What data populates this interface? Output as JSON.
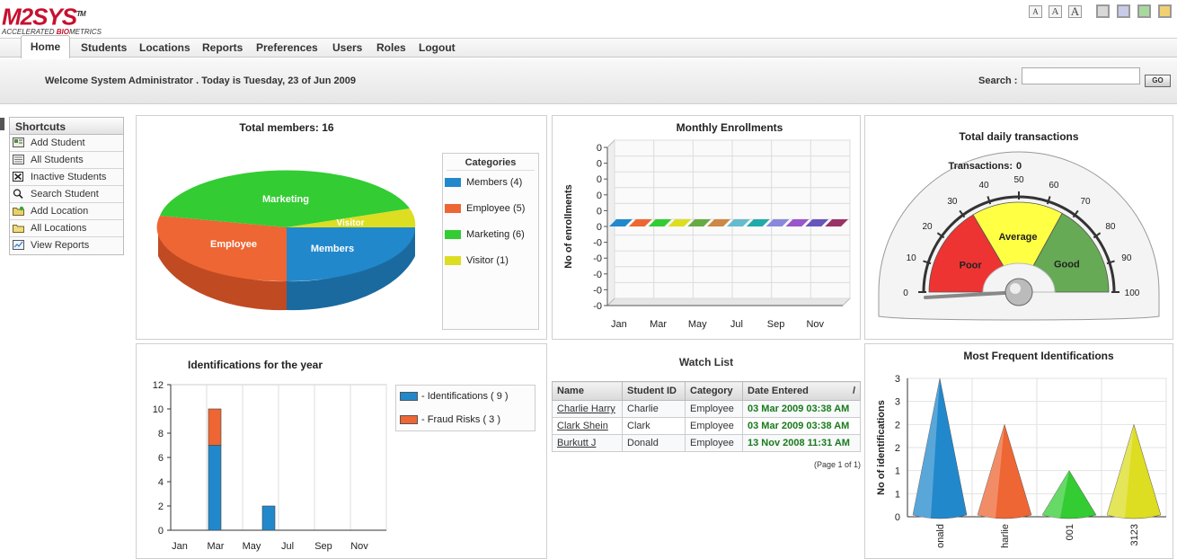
{
  "logo": {
    "name": "M2SYS",
    "tagline_prefix": "ACCELERATED ",
    "tagline_bio": "BIO",
    "tagline_suffix": "METRICS",
    "tm": "TM"
  },
  "font_size_buttons": [
    "A",
    "A",
    "A"
  ],
  "theme_colors": [
    "#d8d8d8",
    "#c8cce8",
    "#a8d8a0",
    "#f0d070"
  ],
  "nav": {
    "items": [
      "Home",
      "Students",
      "Locations",
      "Reports",
      "Preferences",
      "Users",
      "Roles",
      "Logout"
    ],
    "active": "Home"
  },
  "welcome": "Welcome System Administrator . Today is Tuesday, 23 of Jun 2009",
  "search": {
    "label": "Search :",
    "value": "",
    "go_label": "GO"
  },
  "shortcuts": {
    "title": "Shortcuts",
    "items": [
      {
        "label": "Add Student",
        "icon": "add-student-icon"
      },
      {
        "label": "All Students",
        "icon": "all-students-icon"
      },
      {
        "label": "Inactive Students",
        "icon": "inactive-icon"
      },
      {
        "label": "Search Student",
        "icon": "search-icon"
      },
      {
        "label": "Add Location",
        "icon": "add-location-icon"
      },
      {
        "label": "All Locations",
        "icon": "folder-icon"
      },
      {
        "label": "View Reports",
        "icon": "report-icon"
      }
    ]
  },
  "pie_panel": {
    "title": "Total members: 16",
    "legend_title": "Categories",
    "legend": [
      {
        "label": "Members (4)",
        "color": "#2288cc"
      },
      {
        "label": "Employee (5)",
        "color": "#ee6633"
      },
      {
        "label": "Marketing (6)",
        "color": "#33cc33"
      },
      {
        "label": "Visitor (1)",
        "color": "#dddd22"
      }
    ]
  },
  "enroll_panel": {
    "title": "Monthly Enrollments"
  },
  "gauge_panel": {
    "title": "Total daily transactions",
    "readout_label": "Transactions:",
    "readout_value": "0",
    "zones": [
      "Poor",
      "Average",
      "Good"
    ]
  },
  "ident_panel": {
    "title": "Identifications for the year",
    "legend": [
      {
        "label": "- Identifications ( 9 )",
        "color": "#2288cc"
      },
      {
        "label": "- Fraud Risks ( 3 )",
        "color": "#ee6633"
      }
    ]
  },
  "watch_list": {
    "title": "Watch List",
    "columns": [
      "Name",
      "Student ID",
      "Category",
      "Date Entered"
    ],
    "sort_marker": "/",
    "rows": [
      [
        "Charlie Harry",
        "Charlie",
        "Employee",
        "03 Mar 2009 03:38 AM"
      ],
      [
        "Clark Shein",
        "Clark",
        "Employee",
        "03 Mar 2009 03:38 AM"
      ],
      [
        "Burkutt J",
        "Donald",
        "Employee",
        "13 Nov 2008 11:31 AM"
      ]
    ],
    "page_info": "(Page 1 of 1)"
  },
  "freq_panel": {
    "title": "Most Frequent Identifications"
  },
  "chart_data": [
    {
      "type": "pie",
      "title": "Total members: 16",
      "categories": [
        "Members",
        "Employee",
        "Marketing",
        "Visitor"
      ],
      "values": [
        4,
        5,
        6,
        1
      ],
      "colors": [
        "#2288cc",
        "#ee6633",
        "#33cc33",
        "#dddd22"
      ],
      "legend": "right"
    },
    {
      "type": "bar",
      "title": "Monthly Enrollments",
      "ylabel": "No of enrollments",
      "categories": [
        "Jan",
        "Feb",
        "Mar",
        "Apr",
        "May",
        "Jun",
        "Jul",
        "Aug",
        "Sep",
        "Oct",
        "Nov",
        "Dec"
      ],
      "x_tick_labels": [
        "Jan",
        "Mar",
        "May",
        "Jul",
        "Sep",
        "Nov"
      ],
      "values": [
        0,
        0,
        0,
        0,
        0,
        0,
        0,
        0,
        0,
        0,
        0,
        0
      ],
      "colors": [
        "#2288cc",
        "#ee6633",
        "#33cc33",
        "#dddd22",
        "#66aa44",
        "#cc8844",
        "#66bbcc",
        "#22aaaa",
        "#8888dd",
        "#9955cc",
        "#6655bb",
        "#993366"
      ],
      "y_tick_labels": [
        "0",
        "0",
        "0",
        "0",
        "0",
        "0",
        "-0",
        "-0",
        "-0",
        "-0",
        "-0"
      ],
      "grid": true
    },
    {
      "type": "gauge",
      "title": "Total daily transactions",
      "value": 0,
      "range": [
        0,
        100
      ],
      "ticks": [
        0,
        10,
        20,
        30,
        40,
        50,
        60,
        70,
        80,
        90,
        100
      ],
      "zones": [
        {
          "label": "Poor",
          "from": 0,
          "to": 33,
          "color": "#ee3333"
        },
        {
          "label": "Average",
          "from": 33,
          "to": 66,
          "color": "#ffff44"
        },
        {
          "label": "Good",
          "from": 66,
          "to": 100,
          "color": "#66aa55"
        }
      ]
    },
    {
      "type": "bar",
      "title": "Identifications for the year",
      "stacked": true,
      "categories": [
        "Jan",
        "Feb",
        "Mar",
        "Apr",
        "May",
        "Jun",
        "Jul",
        "Aug",
        "Sep",
        "Oct",
        "Nov",
        "Dec"
      ],
      "x_tick_labels": [
        "Jan",
        "Mar",
        "May",
        "Jul",
        "Sep",
        "Nov"
      ],
      "series": [
        {
          "name": "Identifications",
          "values": [
            0,
            0,
            7,
            0,
            0,
            2,
            0,
            0,
            0,
            0,
            0,
            0
          ],
          "color": "#2288cc"
        },
        {
          "name": "Fraud Risks",
          "values": [
            0,
            0,
            3,
            0,
            0,
            0,
            0,
            0,
            0,
            0,
            0,
            0
          ],
          "color": "#ee6633"
        }
      ],
      "ylim": [
        0,
        12
      ],
      "y_ticks": [
        0,
        2,
        4,
        6,
        8,
        10,
        12
      ],
      "legend": "right",
      "grid": true
    },
    {
      "type": "bar",
      "title": "Most Frequent Identifications",
      "ylabel": "No of identifications",
      "categories": [
        "onald",
        "harlie",
        "001",
        "3123"
      ],
      "values": [
        3,
        2,
        1,
        2
      ],
      "colors": [
        "#2288cc",
        "#ee6633",
        "#33cc33",
        "#dddd22"
      ],
      "y_tick_labels": [
        "0",
        "1",
        "1",
        "2",
        "2",
        "3",
        "3"
      ],
      "y_tick_values": [
        0,
        0.5,
        1,
        1.5,
        2,
        2.5,
        3
      ],
      "ylim": [
        0,
        3
      ],
      "grid": true
    }
  ]
}
